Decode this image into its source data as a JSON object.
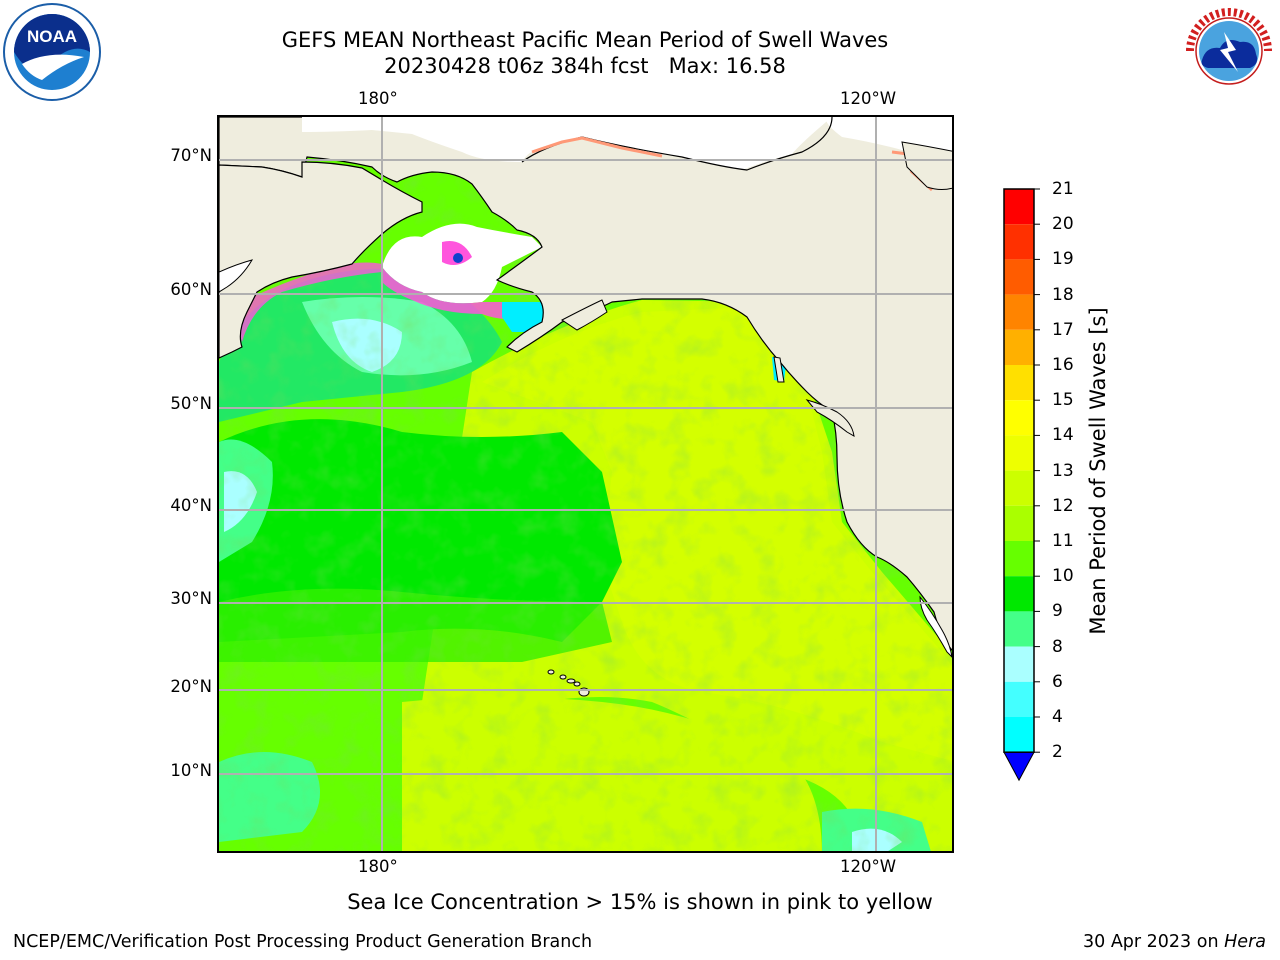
{
  "header": {
    "title_line1": "GEFS MEAN Northeast Pacific Mean Period of Swell Waves",
    "title_line2": "20230428 t06z 384h fcst   Max: 16.58"
  },
  "logos": {
    "left": {
      "icon": "noaa-logo-icon",
      "text": "NOAA"
    },
    "right": {
      "icon": "nws-logo-icon",
      "text": "NATIONAL WEATHER SERVICE"
    }
  },
  "map": {
    "top_lon_labels": [
      "180°",
      "120°W"
    ],
    "bottom_lon_labels": [
      "180°",
      "120°W"
    ],
    "lat_labels": [
      "70°N",
      "60°N",
      "50°N",
      "40°N",
      "30°N",
      "20°N",
      "10°N"
    ],
    "land_color": "#efedde",
    "grid_color": "#b0b0b0"
  },
  "colorbar": {
    "title": "Mean Period of Swell Waves [s]",
    "ticks": [
      "21",
      "20",
      "19",
      "18",
      "17",
      "16",
      "15",
      "14",
      "13",
      "12",
      "11",
      "10",
      "9",
      "8",
      "6",
      "4",
      "2"
    ],
    "colors": [
      "#ff0000",
      "#ff3000",
      "#ff5c00",
      "#ff8400",
      "#ffb000",
      "#ffe000",
      "#ffff00",
      "#eeff00",
      "#ccff00",
      "#aaff00",
      "#66ff00",
      "#00e800",
      "#44ff88",
      "#aaffff",
      "#44ffff",
      "#00ffff",
      "#00ccff",
      "#0088ff",
      "#0000ff"
    ],
    "underflow_color": "#0000ff"
  },
  "footer": {
    "note": "Sea Ice Concentration > 15% is shown in pink to yellow",
    "credit": "NCEP/EMC/Verification Post Processing Product Generation Branch",
    "date": "30 Apr 2023 on",
    "host": "Hera"
  }
}
